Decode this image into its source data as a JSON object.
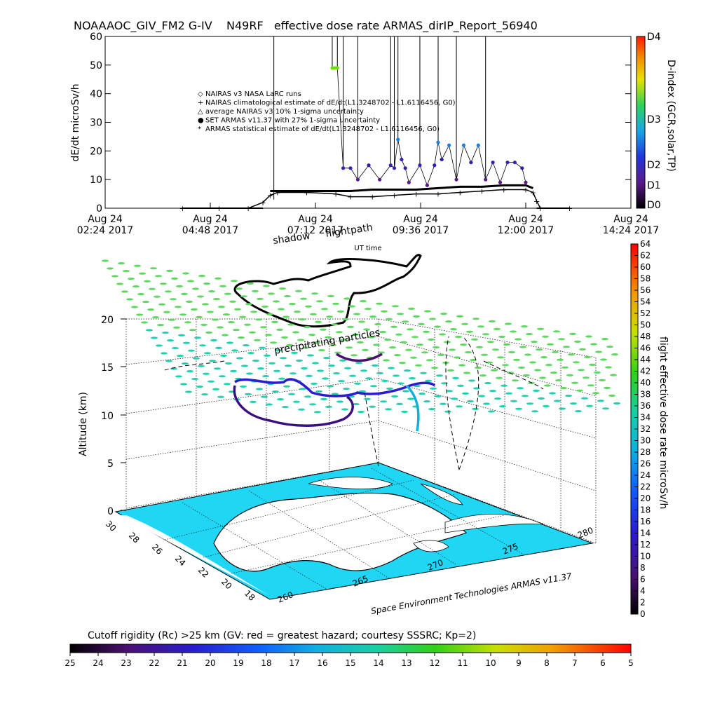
{
  "title": "NOAAAOC_GIV_FM2 G-IV    N49RF   effective dose rate ARMAS_dirIP_Report_56940",
  "chart_data": [
    {
      "type": "scatter",
      "panel": "time-series",
      "ylabel": "dE/dt microSv/h",
      "xlabel": "UT time",
      "ylim": [
        0,
        60
      ],
      "yticks": [
        0,
        10,
        20,
        30,
        40,
        50,
        60
      ],
      "xticks": [
        {
          "t": "02:24",
          "line1": "Aug 24",
          "line2": "02:24 2017"
        },
        {
          "t": "04:48",
          "line1": "Aug 24",
          "line2": "04:48 2017"
        },
        {
          "t": "07:12",
          "line1": "Aug 24",
          "line2": "07:12 2017"
        },
        {
          "t": "09:36",
          "line1": "Aug 24",
          "line2": "09:36 2017"
        },
        {
          "t": "12:00",
          "line1": "Aug 24",
          "line2": "12:00 2017"
        },
        {
          "t": "14:24",
          "line1": "Aug 24",
          "line2": "14:24 2017"
        }
      ],
      "legend": [
        {
          "symbol": "◇",
          "text": "NAIRAS v3 NASA LaRC runs"
        },
        {
          "symbol": "+",
          "text": "NAIRAS climatological estimate of dE/dt(L1.3248702 - L1.6116456, G0)"
        },
        {
          "symbol": "△",
          "text": "average NAIRAS v3 10% 1-sigma uncertainty"
        },
        {
          "symbol": "●",
          "text": "SET ARMAS v11.37 with 27% 1-sigma uncertainty"
        },
        {
          "symbol": "*",
          "text": "ARMAS statistical estimate of dE/dt(L1.3248702 - L1.6116456, G0)"
        }
      ],
      "series": [
        {
          "name": "NAIRAS climatological estimate of dE/dt(L1.3248702 - L1.6116456, G0)",
          "x": [
            "04:10",
            "05:00",
            "05:40",
            "06:00",
            "06:10",
            "06:20",
            "07:00",
            "07:40",
            "08:00",
            "08:30",
            "09:00",
            "09:30",
            "10:00",
            "10:30",
            "11:00",
            "11:30",
            "12:00",
            "12:10",
            "12:15",
            "12:20",
            "13:00"
          ],
          "y": [
            0,
            0,
            0,
            2,
            4.5,
            5.5,
            5.5,
            5,
            4,
            4,
            4.5,
            5,
            5,
            5.5,
            6,
            6.5,
            6.5,
            5.5,
            2.5,
            0,
            0
          ]
        },
        {
          "name": "ARMAS statistical estimate of dE/dt(L1.3248702 - L1.6116456, G0)",
          "x": [
            "06:10",
            "06:40",
            "07:00",
            "07:30",
            "08:00",
            "08:30",
            "09:00",
            "09:30",
            "10:00",
            "10:30",
            "11:00",
            "11:30",
            "12:00",
            "12:10"
          ],
          "y": [
            6,
            6,
            6,
            6,
            6,
            6.5,
            6.5,
            6.5,
            7,
            7.5,
            7.5,
            8,
            8,
            7
          ]
        },
        {
          "name": "SET ARMAS v11.37 with 27% 1-sigma uncertainty",
          "x": [
            "07:35",
            "07:38",
            "07:42",
            "07:50",
            "08:00",
            "08:10",
            "08:25",
            "08:40",
            "08:55",
            "09:00",
            "09:05",
            "09:10",
            "09:15",
            "09:20",
            "09:35",
            "09:45",
            "09:55",
            "10:00",
            "10:05",
            "10:15",
            "10:25",
            "10:35",
            "10:45",
            "10:55",
            "11:05",
            "11:15",
            "11:25",
            "11:35",
            "11:45",
            "11:55",
            "12:00"
          ],
          "y": [
            49,
            49,
            49,
            14,
            14,
            10,
            15,
            10,
            15,
            14,
            24,
            17,
            14,
            9,
            15,
            8,
            15,
            23,
            17,
            22,
            10,
            22,
            16,
            22,
            10,
            16,
            9,
            16,
            16,
            14,
            9
          ]
        }
      ],
      "vertical_spikes_to": 60,
      "colorbar": {
        "label": "D-index (GCR,solar,TP)",
        "ticks": [
          "D0",
          "D1",
          "D2",
          "D3",
          "D4"
        ]
      }
    },
    {
      "type": "scatter",
      "panel": "3d-trajectory",
      "zlabel": "Altitude (km)",
      "zticks": [
        0,
        5,
        10,
        15,
        20
      ],
      "lat_ticks": [
        18,
        20,
        22,
        24,
        26,
        28,
        30
      ],
      "lon_ticks": [
        260,
        265,
        270,
        275,
        280
      ],
      "annotations": [
        "shadow",
        "flightpath",
        "precipitating particles",
        "Space Environment Technologies ARMAS v11.37"
      ],
      "colorbar": {
        "label": "flight effective dose rate microSv/h",
        "range": [
          0,
          64
        ],
        "ticks": [
          0,
          2,
          4,
          6,
          8,
          10,
          12,
          14,
          16,
          18,
          20,
          22,
          24,
          26,
          28,
          30,
          32,
          34,
          36,
          38,
          40,
          42,
          44,
          46,
          48,
          50,
          52,
          54,
          56,
          58,
          60,
          62,
          64
        ]
      },
      "bottom_colorbar": {
        "label": "Cutoff rigidity (Rc) >25 km (GV: red = greatest hazard; courtesy SSSRC; Kp=2)",
        "ticks": [
          25,
          24,
          23,
          22,
          21,
          20,
          19,
          18,
          17,
          16,
          15,
          14,
          13,
          12,
          11,
          10,
          9,
          8,
          7,
          6,
          5
        ]
      }
    }
  ]
}
